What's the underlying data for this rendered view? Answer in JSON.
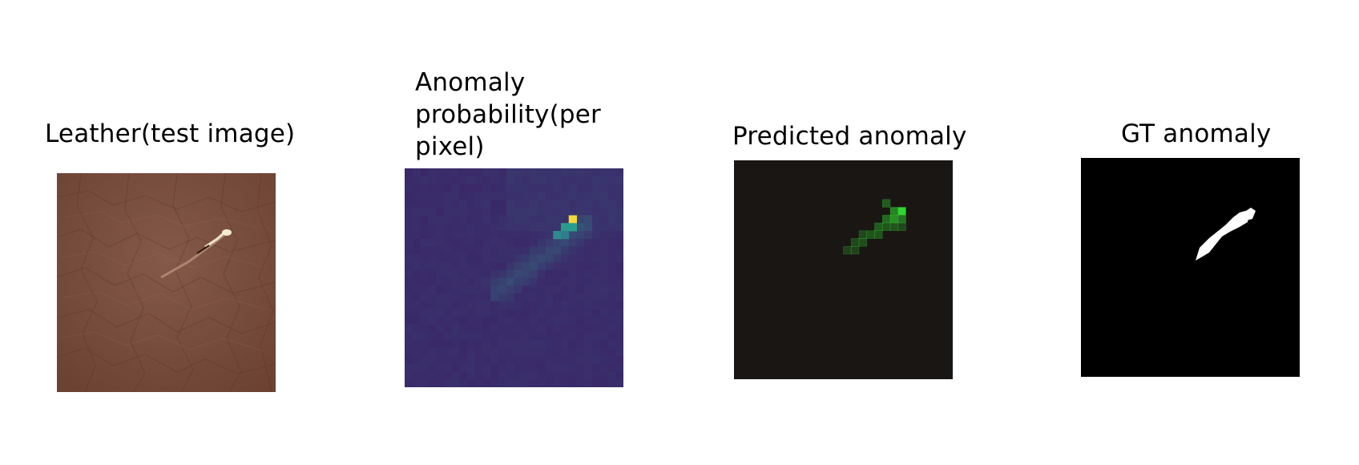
{
  "panels": [
    {
      "id": "leather",
      "title": "Leather(test image)",
      "kind": "photo",
      "base_color": "#7a4e3c"
    },
    {
      "id": "probability",
      "title": "Anomaly probability(per pixel)",
      "kind": "heatmap",
      "base_color": "#3e1f66",
      "hot_color": "#f2d93b",
      "mid_color": "#2a9c8c"
    },
    {
      "id": "predicted",
      "title": "Predicted anomaly",
      "kind": "overlay",
      "base_color": "#1a1614",
      "accent_color": "#32e032"
    },
    {
      "id": "gt",
      "title": "GT anomaly",
      "kind": "mask",
      "base_color": "#000000",
      "mask_color": "#ffffff"
    }
  ]
}
